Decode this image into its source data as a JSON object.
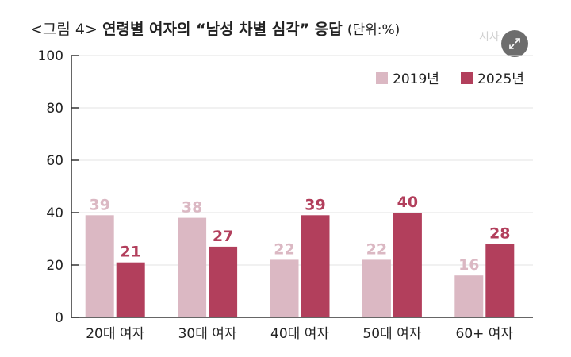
{
  "header": {
    "prefix": "<그림 4>",
    "title": "연령별 여자의 “남성 차별 심각” 응답",
    "unit": "(단위:%)"
  },
  "watermark": "시사",
  "expand_icon": "expand-arrows-icon",
  "colors": {
    "series_2019": "#dbb8c3",
    "series_2025": "#b23f5c",
    "axis": "#333333",
    "grid": "#e3e3e3"
  },
  "chart_data": {
    "type": "bar",
    "categories": [
      "20대 여자",
      "30대 여자",
      "40대 여자",
      "50대 여자",
      "60+ 여자"
    ],
    "series": [
      {
        "name": "2019년",
        "values": [
          39,
          38,
          22,
          22,
          16
        ]
      },
      {
        "name": "2025년",
        "values": [
          21,
          27,
          39,
          40,
          28
        ]
      }
    ],
    "ylim": [
      0,
      100
    ],
    "yticks": [
      0,
      20,
      40,
      60,
      80,
      100
    ],
    "grid": true,
    "legend": "top-right"
  }
}
